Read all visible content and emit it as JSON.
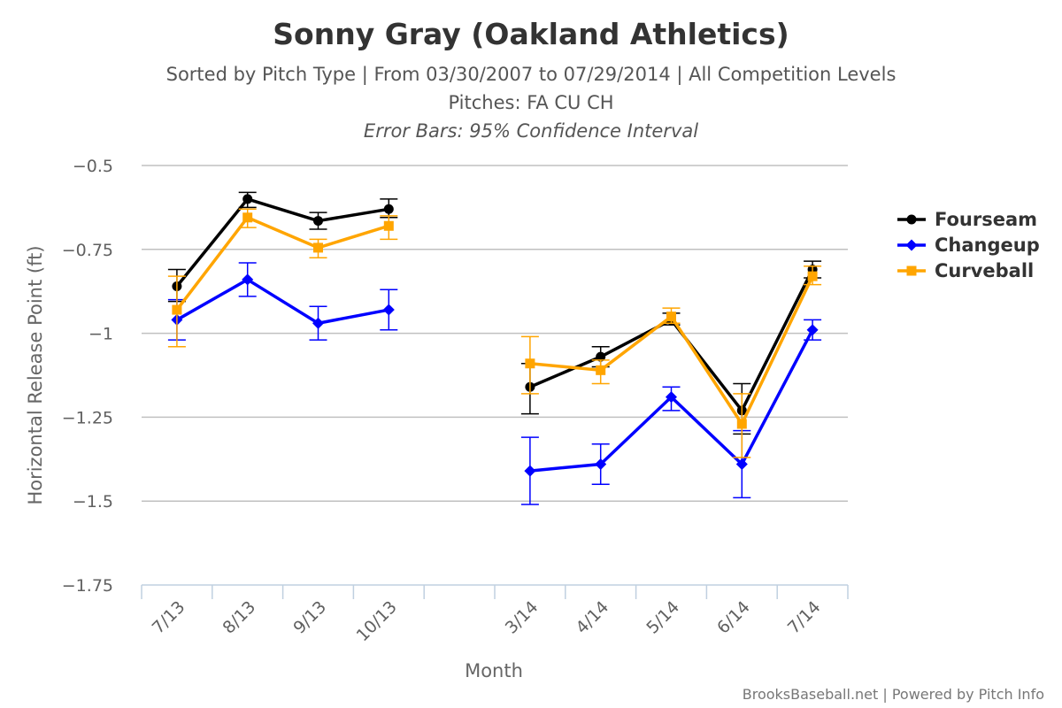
{
  "chart_data": {
    "type": "line",
    "title": "Sonny Gray (Oakland Athletics)",
    "subtitle_lines": [
      "Sorted by Pitch Type | From 03/30/2007 to 07/29/2014 | All Competition Levels",
      "Pitches: FA CU CH"
    ],
    "error_note": "Error Bars: 95% Confidence Interval",
    "xlabel": "Month",
    "ylabel": "Horizontal Release Point (ft)",
    "categories": [
      "7/13",
      "8/13",
      "9/13",
      "10/13",
      "",
      "3/14",
      "4/14",
      "5/14",
      "6/14",
      "7/14"
    ],
    "ylim": [
      -1.75,
      -0.5
    ],
    "yticks": [
      -0.5,
      -0.75,
      -1,
      -1.25,
      -1.5,
      -1.75
    ],
    "ytick_labels": [
      "−0.5",
      "−0.75",
      "−1",
      "−1.25",
      "−1.5",
      "−1.75"
    ],
    "grid": true,
    "legend_position": "right",
    "series": [
      {
        "name": "Fourseam",
        "color": "#000000",
        "marker": "circle",
        "values": [
          -0.86,
          -0.6,
          -0.665,
          -0.63,
          null,
          -1.16,
          -1.07,
          -0.96,
          -1.23,
          -0.81
        ],
        "error_low": [
          -0.905,
          -0.625,
          -0.69,
          -0.655,
          null,
          -1.24,
          -1.1,
          -0.975,
          -1.3,
          -0.835
        ],
        "error_high": [
          -0.81,
          -0.58,
          -0.64,
          -0.6,
          null,
          -1.09,
          -1.04,
          -0.94,
          -1.15,
          -0.785
        ]
      },
      {
        "name": "Changeup",
        "color": "#0000ff",
        "marker": "diamond",
        "values": [
          -0.96,
          -0.84,
          -0.97,
          -0.93,
          null,
          -1.41,
          -1.39,
          -1.19,
          -1.39,
          -0.99
        ],
        "error_low": [
          -1.02,
          -0.89,
          -1.02,
          -0.99,
          null,
          -1.51,
          -1.45,
          -1.23,
          -1.49,
          -1.02
        ],
        "error_high": [
          -0.9,
          -0.79,
          -0.92,
          -0.87,
          null,
          -1.31,
          -1.33,
          -1.16,
          -1.29,
          -0.96
        ]
      },
      {
        "name": "Curveball",
        "color": "#ffa500",
        "marker": "square",
        "values": [
          -0.93,
          -0.655,
          -0.745,
          -0.68,
          null,
          -1.09,
          -1.11,
          -0.95,
          -1.27,
          -0.83
        ],
        "error_low": [
          -1.04,
          -0.685,
          -0.775,
          -0.72,
          null,
          -1.18,
          -1.15,
          -0.97,
          -1.37,
          -0.855
        ],
        "error_high": [
          -0.83,
          -0.63,
          -0.72,
          -0.65,
          null,
          -1.01,
          -1.08,
          -0.925,
          -1.18,
          -0.8
        ]
      }
    ],
    "credit": "BrooksBaseball.net | Powered by Pitch Info"
  }
}
